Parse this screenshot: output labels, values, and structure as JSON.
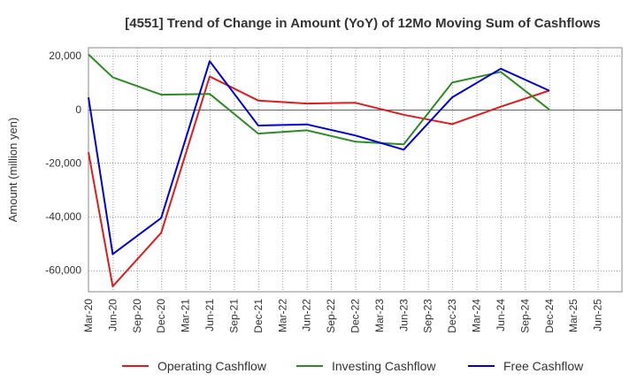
{
  "chart_data": {
    "type": "line",
    "title": "[4551]  Trend of Change in Amount (YoY) of 12Mo Moving Sum of Cashflows",
    "xlabel": "",
    "ylabel": "Amount (million yen)",
    "ylim": [
      -68000,
      23000
    ],
    "yticks": [
      20000,
      0,
      -20000,
      -40000,
      -60000
    ],
    "ytick_labels": [
      "20,000",
      "0",
      "-20,000",
      "-40,000",
      "-60,000"
    ],
    "grid": true,
    "legend_position": "bottom",
    "categories": [
      "Mar-20",
      "Jun-20",
      "Sep-20",
      "Dec-20",
      "Mar-21",
      "Jun-21",
      "Sep-21",
      "Dec-21",
      "Mar-22",
      "Jun-22",
      "Sep-22",
      "Dec-22",
      "Mar-23",
      "Jun-23",
      "Sep-23",
      "Dec-23",
      "Mar-24",
      "Jun-24",
      "Sep-24",
      "Dec-24",
      "Mar-25",
      "Jun-25"
    ],
    "series": [
      {
        "name": "Operating Cashflow",
        "color": "#e31a1c",
        "values": [
          -16000,
          -66000,
          null,
          -46000,
          null,
          12300,
          null,
          3300,
          null,
          2200,
          null,
          2500,
          null,
          -2000,
          null,
          -5500,
          null,
          1000,
          null,
          7000,
          null,
          null
        ]
      },
      {
        "name": "Investing Cashflow",
        "color": "#2e8b24",
        "values": [
          20500,
          12000,
          null,
          5500,
          null,
          5800,
          null,
          -9000,
          null,
          -7800,
          null,
          -12000,
          null,
          -13000,
          null,
          10000,
          null,
          14000,
          null,
          0,
          null,
          null
        ]
      },
      {
        "name": "Free Cashflow",
        "color": "#0000dd",
        "values": [
          4500,
          -54000,
          null,
          -40500,
          null,
          18000,
          null,
          -6000,
          null,
          -5600,
          null,
          -9700,
          null,
          -15000,
          null,
          4500,
          null,
          15200,
          null,
          7000,
          null,
          null
        ]
      }
    ]
  }
}
